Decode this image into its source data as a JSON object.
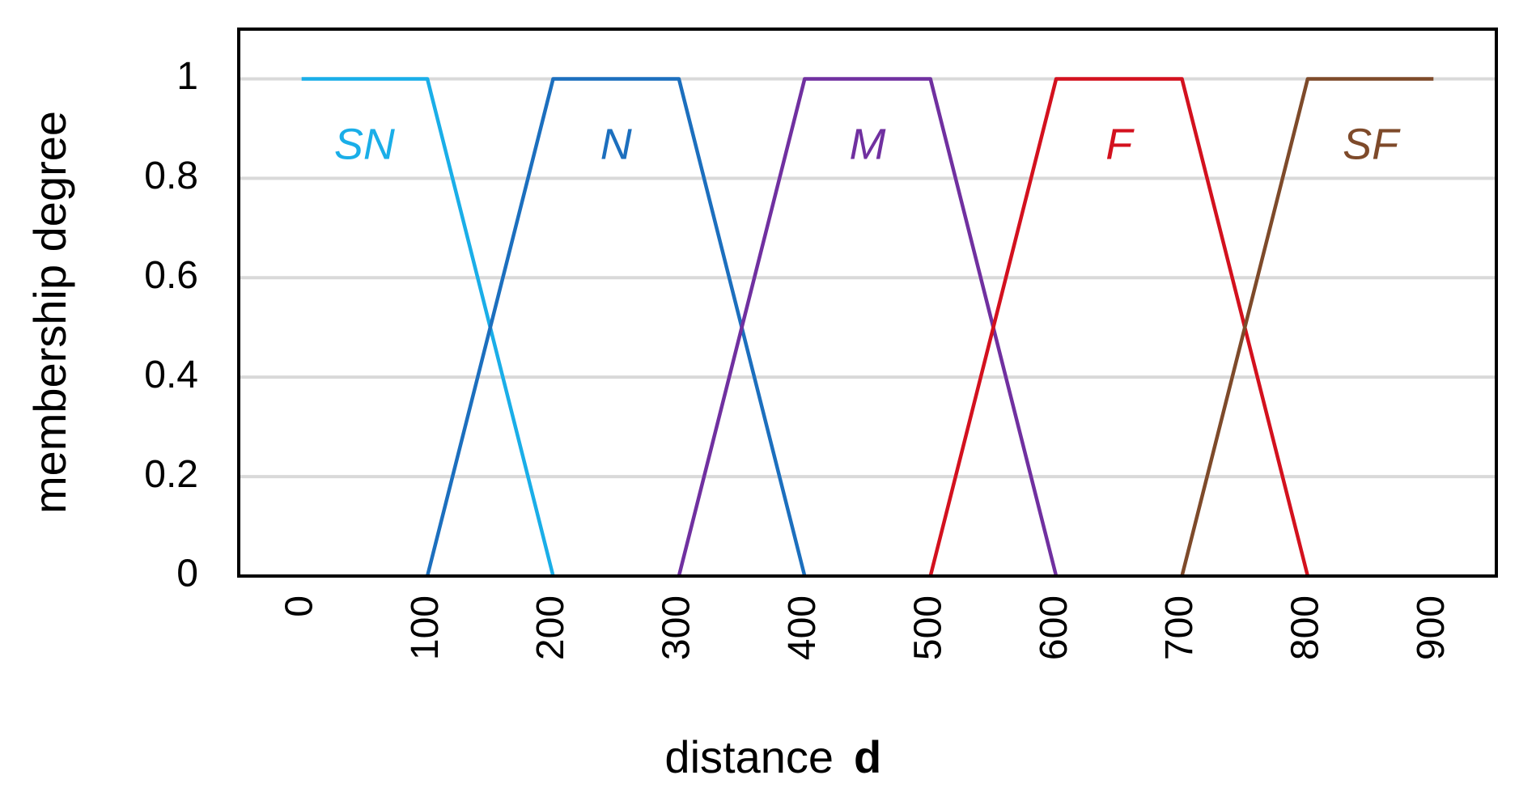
{
  "chart_data": {
    "type": "line",
    "x_label": "distance",
    "x_label_symbol": "d",
    "y_label": "membership degree",
    "xlim": [
      -50,
      950
    ],
    "ylim": [
      0,
      1.1
    ],
    "xticks": [
      0,
      100,
      200,
      300,
      400,
      500,
      600,
      700,
      800,
      900
    ],
    "yticks": [
      0,
      0.2,
      0.4,
      0.6,
      0.8,
      1
    ],
    "grid": true,
    "series": [
      {
        "name": "SN",
        "color": "#1aaee8",
        "x": [
          0,
          100,
          200
        ],
        "values": [
          1,
          1,
          0
        ]
      },
      {
        "name": "N",
        "color": "#1c6fbe",
        "x": [
          100,
          200,
          300,
          400
        ],
        "values": [
          0,
          1,
          1,
          0
        ]
      },
      {
        "name": "M",
        "color": "#7030a0",
        "x": [
          300,
          400,
          500,
          600
        ],
        "values": [
          0,
          1,
          1,
          0
        ]
      },
      {
        "name": "F",
        "color": "#d3111e",
        "x": [
          500,
          600,
          700,
          800
        ],
        "values": [
          0,
          1,
          1,
          0
        ]
      },
      {
        "name": "SF",
        "color": "#7e4a2a",
        "x": [
          700,
          800,
          900
        ],
        "values": [
          0,
          1,
          1
        ]
      }
    ]
  }
}
